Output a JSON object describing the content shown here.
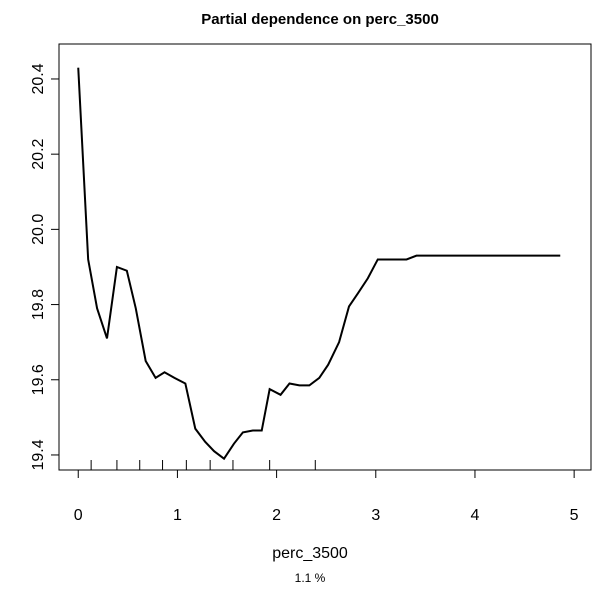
{
  "chart_data": {
    "type": "line",
    "title": "Partial dependence on perc_3500",
    "x_label": "perc_3500",
    "subtitle": "1.1 %",
    "x": [
      0,
      0.1,
      0.19,
      0.29,
      0.39,
      0.49,
      0.58,
      0.68,
      0.78,
      0.87,
      0.97,
      1.08,
      1.18,
      1.28,
      1.37,
      1.47,
      1.57,
      1.66,
      1.76,
      1.85,
      1.93,
      2.04,
      2.13,
      2.23,
      2.33,
      2.43,
      2.52,
      2.63,
      2.73,
      2.82,
      2.92,
      3.02,
      3.12,
      3.21,
      3.31,
      3.41,
      3.51,
      3.61,
      4.86
    ],
    "series": [
      {
        "color": "#000000",
        "values": [
          20.43,
          19.92,
          19.79,
          19.71,
          19.9,
          19.89,
          19.79,
          19.65,
          19.605,
          19.62,
          19.605,
          19.59,
          19.47,
          19.435,
          19.41,
          19.39,
          19.43,
          19.46,
          19.465,
          19.465,
          19.575,
          19.56,
          19.59,
          19.585,
          19.585,
          19.605,
          19.64,
          19.7,
          19.795,
          19.83,
          19.87,
          19.92,
          19.92,
          19.92,
          19.92,
          19.93,
          19.93,
          19.93,
          19.93
        ]
      }
    ],
    "rug": [
      0.13,
      0.39,
      0.62,
      0.85,
      1.09,
      1.33,
      1.56,
      1.93,
      2.39
    ],
    "xlim": [
      -0.194,
      5.17
    ],
    "ylim": [
      19.36,
      20.493
    ],
    "xticks": [
      0,
      1,
      2,
      3,
      4,
      5
    ],
    "yticks": [
      19.4,
      19.6,
      19.8,
      {
        "value": 20,
        "label": "20.0"
      },
      20.2,
      20.4
    ]
  }
}
